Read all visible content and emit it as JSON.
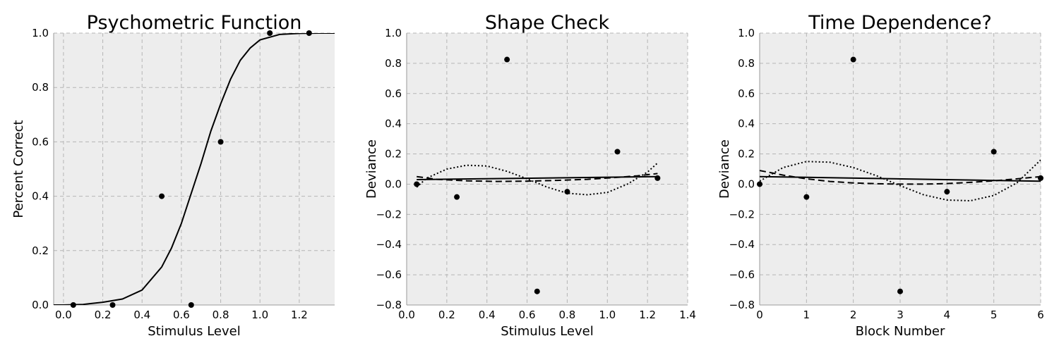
{
  "chart_data": [
    {
      "type": "scatter",
      "title": "Psychometric Function",
      "xlabel": "Stimulus Level",
      "ylabel": "Percent Correct",
      "xlim": [
        -0.05,
        1.38
      ],
      "ylim": [
        0,
        1.0
      ],
      "xticks": [
        0.0,
        0.2,
        0.4,
        0.6,
        0.8,
        1.0,
        1.2
      ],
      "xticklabels": [
        "0.0",
        "0.2",
        "0.4",
        "0.6",
        "0.8",
        "1.0",
        "1.2"
      ],
      "yticks": [
        0,
        0.2,
        0.4,
        0.6,
        0.8,
        1.0
      ],
      "yticklabels": [
        "0.0",
        "0.2",
        "0.4",
        "0.6",
        "0.8",
        "1.0"
      ],
      "grid": true,
      "points": {
        "x": [
          0.05,
          0.25,
          0.5,
          0.65,
          0.8,
          1.05,
          1.25
        ],
        "y": [
          0.0,
          0.0,
          0.4,
          0.0,
          0.6,
          1.0,
          1.0
        ]
      },
      "fit_curve": {
        "style": "solid",
        "x": [
          -0.05,
          0.0,
          0.1,
          0.2,
          0.3,
          0.4,
          0.5,
          0.55,
          0.6,
          0.65,
          0.7,
          0.75,
          0.8,
          0.85,
          0.9,
          0.95,
          1.0,
          1.1,
          1.2,
          1.3,
          1.38
        ],
        "y": [
          0.0,
          0.0,
          0.002,
          0.01,
          0.022,
          0.055,
          0.14,
          0.21,
          0.3,
          0.41,
          0.52,
          0.64,
          0.74,
          0.83,
          0.9,
          0.945,
          0.975,
          0.995,
          0.999,
          1.0,
          1.0
        ]
      }
    },
    {
      "type": "scatter",
      "title": "Shape Check",
      "xlabel": "Stimulus Level",
      "ylabel": "Deviance",
      "xlim": [
        0.0,
        1.4
      ],
      "ylim": [
        -0.8,
        1.0
      ],
      "xticks": [
        0.0,
        0.2,
        0.4,
        0.6,
        0.8,
        1.0,
        1.2,
        1.4
      ],
      "xticklabels": [
        "0.0",
        "0.2",
        "0.4",
        "0.6",
        "0.8",
        "1.0",
        "1.2",
        "1.4"
      ],
      "yticks": [
        -0.8,
        -0.6,
        -0.4,
        -0.2,
        0.0,
        0.2,
        0.4,
        0.6,
        0.8,
        1.0
      ],
      "yticklabels": [
        "−0.8",
        "−0.6",
        "−0.4",
        "−0.2",
        "0.0",
        "0.2",
        "0.4",
        "0.6",
        "0.8",
        "1.0"
      ],
      "grid": true,
      "points": {
        "x": [
          0.05,
          0.25,
          0.5,
          0.65,
          0.8,
          1.05,
          1.25
        ],
        "y": [
          0.0,
          -0.085,
          0.825,
          -0.71,
          -0.05,
          0.215,
          0.04
        ]
      },
      "fits": [
        {
          "style": "solid",
          "x": [
            0.05,
            1.25
          ],
          "y": [
            0.03,
            0.05
          ]
        },
        {
          "style": "dashed",
          "x": [
            0.05,
            0.15,
            0.3,
            0.45,
            0.6,
            0.75,
            0.9,
            1.05,
            1.15,
            1.25
          ],
          "y": [
            0.05,
            0.032,
            0.022,
            0.018,
            0.02,
            0.025,
            0.032,
            0.045,
            0.055,
            0.07
          ]
        },
        {
          "style": "dotted",
          "x": [
            0.05,
            0.1,
            0.2,
            0.3,
            0.4,
            0.5,
            0.6,
            0.7,
            0.8,
            0.9,
            1.0,
            1.1,
            1.2,
            1.25
          ],
          "y": [
            -0.02,
            0.04,
            0.1,
            0.125,
            0.12,
            0.085,
            0.035,
            -0.02,
            -0.06,
            -0.07,
            -0.055,
            0.0,
            0.08,
            0.14
          ]
        }
      ]
    },
    {
      "type": "scatter",
      "title": "Time Dependence?",
      "xlabel": "Block Number",
      "ylabel": "Deviance",
      "xlim": [
        0,
        6
      ],
      "ylim": [
        -0.8,
        1.0
      ],
      "xticks": [
        0,
        1,
        2,
        3,
        4,
        5,
        6
      ],
      "xticklabels": [
        "0",
        "1",
        "2",
        "3",
        "4",
        "5",
        "6"
      ],
      "yticks": [
        -0.8,
        -0.6,
        -0.4,
        -0.2,
        0.0,
        0.2,
        0.4,
        0.6,
        0.8,
        1.0
      ],
      "yticklabels": [
        "−0.8",
        "−0.6",
        "−0.4",
        "−0.2",
        "0.0",
        "0.2",
        "0.4",
        "0.6",
        "0.8",
        "1.0"
      ],
      "grid": true,
      "points": {
        "x": [
          0,
          1,
          2,
          3,
          4,
          5,
          6
        ],
        "y": [
          0.0,
          -0.085,
          0.825,
          -0.71,
          -0.05,
          0.215,
          0.04
        ]
      },
      "fits": [
        {
          "style": "solid",
          "x": [
            0,
            6
          ],
          "y": [
            0.05,
            0.02
          ]
        },
        {
          "style": "dashed",
          "x": [
            0,
            0.5,
            1,
            1.5,
            2,
            2.5,
            3,
            3.5,
            4,
            4.5,
            5,
            5.5,
            6
          ],
          "y": [
            0.09,
            0.06,
            0.035,
            0.018,
            0.008,
            0.003,
            0.0,
            0.0,
            0.004,
            0.012,
            0.022,
            0.035,
            0.05
          ]
        },
        {
          "style": "dotted",
          "x": [
            0,
            0.5,
            1,
            1.5,
            2,
            2.5,
            3,
            3.5,
            4,
            4.5,
            5,
            5.5,
            6
          ],
          "y": [
            0.02,
            0.11,
            0.15,
            0.145,
            0.11,
            0.055,
            -0.01,
            -0.07,
            -0.105,
            -0.11,
            -0.075,
            0.01,
            0.16
          ]
        }
      ]
    }
  ]
}
